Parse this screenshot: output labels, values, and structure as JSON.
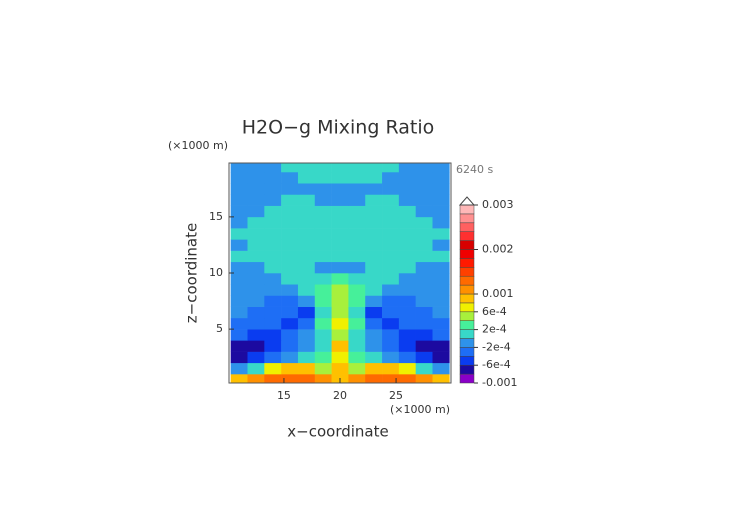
{
  "chart_data": {
    "type": "contour",
    "title": "H2O−g Mixing Ratio",
    "time_label": "6240 s",
    "x_label": "x−coordinate",
    "y_label": "z−coordinate",
    "x_unit": "(×1000 m)",
    "y_unit": "(×1000 m)",
    "xlim": [
      10.1,
      29.9
    ],
    "ylim": [
      0.2,
      19.8
    ],
    "xticks": [
      15,
      20,
      25
    ],
    "yticks": [
      5,
      10,
      15
    ],
    "x": [
      11,
      12.5,
      14,
      15.5,
      17,
      18.5,
      20,
      21.5,
      23,
      24.5,
      26,
      27.5,
      29
    ],
    "y": [
      0.5,
      1.5,
      2.5,
      3.5,
      4.5,
      5.5,
      6.5,
      7.5,
      8.5,
      9.5,
      10.5,
      11.5,
      12.5,
      13.5,
      14.5,
      15.5,
      16.5,
      17.5,
      18.5,
      19.5
    ],
    "z": [
      [
        0.0009,
        0.0011,
        0.0013,
        0.0013,
        0.0013,
        0.0011,
        0.0009,
        0.0011,
        0.0013,
        0.0013,
        0.0013,
        0.0011,
        0.0009
      ],
      [
        -0.0001,
        0.0001,
        0.0007,
        0.0009,
        0.0009,
        0.0005,
        0.0009,
        0.0005,
        0.0009,
        0.0009,
        0.0007,
        0.0001,
        -0.0001
      ],
      [
        -0.0007,
        -0.0005,
        -0.0003,
        -0.0001,
        0.0001,
        0.0003,
        0.0007,
        0.0003,
        0.0001,
        -0.0001,
        -0.0003,
        -0.0005,
        -0.0007
      ],
      [
        -0.0007,
        -0.0007,
        -0.0005,
        -0.0003,
        -0.0001,
        0.0001,
        0.0009,
        0.0001,
        -0.0001,
        -0.0003,
        -0.0005,
        -0.0007,
        -0.0007
      ],
      [
        -0.0003,
        -0.0005,
        -0.0005,
        -0.0003,
        -0.0001,
        0.0001,
        0.0005,
        0.0001,
        -0.0001,
        -0.0003,
        -0.0005,
        -0.0005,
        -0.0003
      ],
      [
        -0.0003,
        -0.0003,
        -0.0003,
        -0.0005,
        -0.0003,
        0.0003,
        0.0007,
        0.0003,
        -0.0003,
        -0.0005,
        -0.0003,
        -0.0003,
        -0.0003
      ],
      [
        -0.0001,
        -0.0003,
        -0.0003,
        -0.0003,
        -0.0005,
        0.0001,
        0.0005,
        0.0001,
        -0.0005,
        -0.0003,
        -0.0003,
        -0.0003,
        -0.0001
      ],
      [
        -0.0001,
        -0.0001,
        -0.0003,
        -0.0003,
        -0.0001,
        0.0003,
        0.0005,
        0.0003,
        -0.0001,
        -0.0003,
        -0.0003,
        -0.0001,
        -0.0001
      ],
      [
        -0.0001,
        -0.0001,
        -0.0001,
        -0.0001,
        0.0001,
        0.0003,
        0.0005,
        0.0003,
        0.0001,
        -0.0001,
        -0.0001,
        -0.0001,
        -0.0001
      ],
      [
        -0.0001,
        -0.0001,
        -0.0001,
        0.0001,
        0.0001,
        0.0001,
        0.0003,
        0.0001,
        0.0001,
        0.0001,
        -0.0001,
        -0.0001,
        -0.0001
      ],
      [
        -0.0001,
        -0.0001,
        0.0001,
        0.0001,
        0.0001,
        -0.0001,
        -0.0001,
        -0.0001,
        0.0001,
        0.0001,
        0.0001,
        -0.0001,
        -0.0001
      ],
      [
        0.0001,
        0.0001,
        0.0001,
        0.0001,
        0.0001,
        0.0001,
        0.0001,
        0.0001,
        0.0001,
        0.0001,
        0.0001,
        0.0001,
        0.0001
      ],
      [
        -0.0001,
        0.0001,
        0.0001,
        0.0001,
        0.0001,
        0.0001,
        0.0001,
        0.0001,
        0.0001,
        0.0001,
        0.0001,
        0.0001,
        -0.0001
      ],
      [
        0.0001,
        0.0001,
        0.0001,
        0.0001,
        0.0001,
        0.0001,
        0.0001,
        0.0001,
        0.0001,
        0.0001,
        0.0001,
        0.0001,
        0.0001
      ],
      [
        -0.0001,
        0.0001,
        0.0001,
        0.0001,
        0.0001,
        0.0001,
        0.0001,
        0.0001,
        0.0001,
        0.0001,
        0.0001,
        0.0001,
        -0.0001
      ],
      [
        -0.0001,
        -0.0001,
        0.0001,
        0.0001,
        0.0001,
        0.0001,
        0.0001,
        0.0001,
        0.0001,
        0.0001,
        0.0001,
        -0.0001,
        -0.0001
      ],
      [
        -0.0001,
        -0.0001,
        -0.0001,
        0.0001,
        0.0001,
        -0.0001,
        -0.0001,
        -0.0001,
        0.0001,
        0.0001,
        -0.0001,
        -0.0001,
        -0.0001
      ],
      [
        -0.0001,
        -0.0001,
        -0.0001,
        -0.0001,
        -0.0001,
        -0.0001,
        -0.0001,
        -0.0001,
        -0.0001,
        -0.0001,
        -0.0001,
        -0.0001,
        -0.0001
      ],
      [
        -0.0001,
        -0.0001,
        -0.0001,
        -0.0001,
        0.0001,
        0.0001,
        0.0001,
        0.0001,
        0.0001,
        -0.0001,
        -0.0001,
        -0.0001,
        -0.0001
      ],
      [
        -0.0001,
        -0.0001,
        -0.0001,
        0.0001,
        0.0001,
        0.0001,
        0.0001,
        0.0001,
        0.0001,
        0.0001,
        -0.0001,
        -0.0001,
        -0.0001
      ]
    ],
    "levels": [
      -0.001,
      -0.0008,
      -0.0006,
      -0.0004,
      -0.0002,
      0,
      0.0002,
      0.0004,
      0.0006,
      0.0008,
      0.001,
      0.0012,
      0.0014,
      0.0016,
      0.0018,
      0.002,
      0.0022,
      0.0024,
      0.0026,
      0.0028,
      0.003
    ],
    "colors": [
      "#8a00c8",
      "#1c0aa0",
      "#0a3cf0",
      "#1e6ef5",
      "#2e92ea",
      "#38d8c8",
      "#46f09a",
      "#a8f03c",
      "#f0f000",
      "#ffc000",
      "#ff9000",
      "#ff6a00",
      "#ff4000",
      "#ff1a00",
      "#f00000",
      "#d80000",
      "#ff3030",
      "#ff6060",
      "#ff9090",
      "#ffb8b8"
    ],
    "colorbar_ticks": [
      0.003,
      0.002,
      0.001,
      {
        "value": 0.0006,
        "label": "6e-4"
      },
      {
        "value": 0.0002,
        "label": "2e-4"
      },
      {
        "value": -0.0002,
        "label": "-2e-4"
      },
      {
        "value": -0.0006,
        "label": "-6e-4"
      },
      -0.001
    ],
    "extend": "max"
  }
}
